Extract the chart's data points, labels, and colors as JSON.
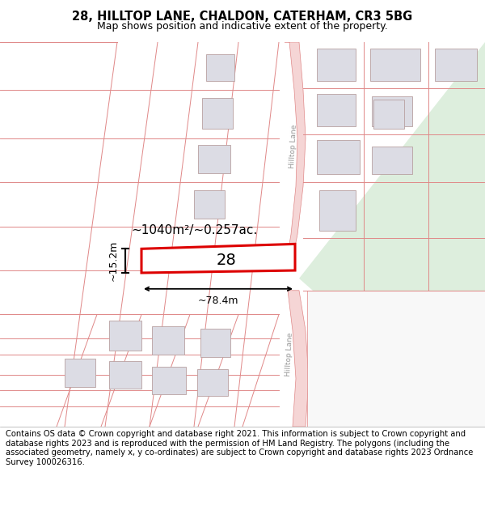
{
  "title": "28, HILLTOP LANE, CHALDON, CATERHAM, CR3 5BG",
  "subtitle": "Map shows position and indicative extent of the property.",
  "footer": "Contains OS data © Crown copyright and database right 2021. This information is subject to Crown copyright and database rights 2023 and is reproduced with the permission of HM Land Registry. The polygons (including the associated geometry, namely x, y co-ordinates) are subject to Crown copyright and database rights 2023 Ordnance Survey 100026316.",
  "title_fontsize": 10.5,
  "subtitle_fontsize": 9,
  "footer_fontsize": 7.2,
  "map_bg": "#f8f8f8",
  "road_fill": "#f5d5d5",
  "road_edge": "#e08888",
  "bld_fill": "#dcdce4",
  "bld_edge": "#b8a0a0",
  "highlight": "#dd0000",
  "green_fill": "#ddeedd",
  "area_text": "~1040m²/~0.257ac.",
  "width_text": "~78.4m",
  "height_text": "~15.2m",
  "plot_number": "28",
  "line_color": "#e08888"
}
